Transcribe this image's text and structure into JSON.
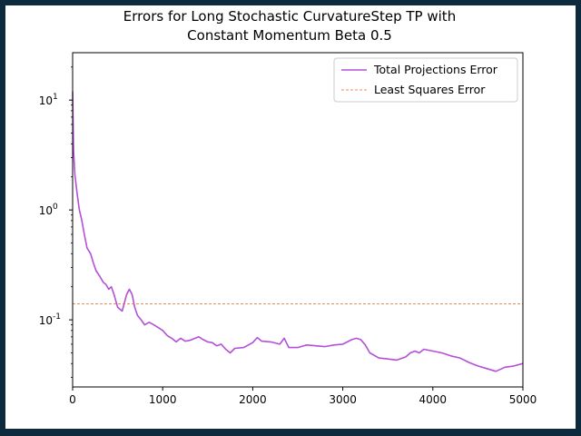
{
  "chart_data": {
    "type": "line",
    "title_line1": "Errors for Long Stochastic CurvatureStep TP with",
    "title_line2": "Constant Momentum Beta 0.5",
    "xlabel": "",
    "ylabel": "",
    "x_range": [
      0,
      5000
    ],
    "y_range": [
      0.0245,
      27
    ],
    "y_scale": "log",
    "x_ticks": [
      0,
      1000,
      2000,
      3000,
      4000,
      5000
    ],
    "x_tick_labels": [
      "0",
      "1000",
      "2000",
      "3000",
      "4000",
      "5000"
    ],
    "y_ticks": [
      10,
      1,
      0.1
    ],
    "y_tick_labels": [
      "10^1",
      "10^0",
      "10^-1"
    ],
    "grid": false,
    "legend_position": "top-right",
    "series": [
      {
        "name": "Total Projections Error",
        "color": "#b54fd8",
        "style": "solid",
        "x": [
          0,
          10,
          25,
          50,
          75,
          100,
          130,
          160,
          200,
          230,
          260,
          300,
          340,
          370,
          400,
          430,
          460,
          500,
          550,
          600,
          630,
          660,
          690,
          720,
          760,
          800,
          850,
          900,
          950,
          1000,
          1050,
          1100,
          1150,
          1200,
          1250,
          1300,
          1400,
          1450,
          1500,
          1550,
          1600,
          1650,
          1700,
          1750,
          1800,
          1900,
          2000,
          2050,
          2100,
          2200,
          2300,
          2350,
          2400,
          2500,
          2600,
          2700,
          2800,
          2900,
          3000,
          3100,
          3150,
          3200,
          3250,
          3300,
          3400,
          3500,
          3600,
          3700,
          3750,
          3800,
          3850,
          3900,
          3950,
          4000,
          4050,
          4100,
          4200,
          4300,
          4400,
          4500,
          4600,
          4650,
          4700,
          4800,
          4900,
          5000
        ],
        "y": [
          12,
          3.5,
          2.1,
          1.4,
          1.0,
          0.82,
          0.6,
          0.45,
          0.4,
          0.33,
          0.28,
          0.25,
          0.22,
          0.21,
          0.19,
          0.2,
          0.17,
          0.13,
          0.12,
          0.17,
          0.19,
          0.17,
          0.13,
          0.11,
          0.1,
          0.09,
          0.095,
          0.09,
          0.085,
          0.08,
          0.072,
          0.068,
          0.063,
          0.068,
          0.064,
          0.065,
          0.07,
          0.066,
          0.063,
          0.062,
          0.058,
          0.06,
          0.054,
          0.05,
          0.055,
          0.056,
          0.062,
          0.069,
          0.064,
          0.063,
          0.06,
          0.068,
          0.056,
          0.056,
          0.059,
          0.058,
          0.057,
          0.059,
          0.06,
          0.066,
          0.068,
          0.066,
          0.059,
          0.05,
          0.045,
          0.044,
          0.043,
          0.046,
          0.05,
          0.052,
          0.05,
          0.054,
          0.053,
          0.052,
          0.051,
          0.05,
          0.047,
          0.045,
          0.041,
          0.038,
          0.036,
          0.035,
          0.034,
          0.037,
          0.038,
          0.04
        ]
      },
      {
        "name": "Least Squares Error",
        "color": "#e8642c",
        "style": "dashed",
        "x": [
          0,
          5000
        ],
        "y": [
          0.14,
          0.14
        ]
      }
    ]
  }
}
